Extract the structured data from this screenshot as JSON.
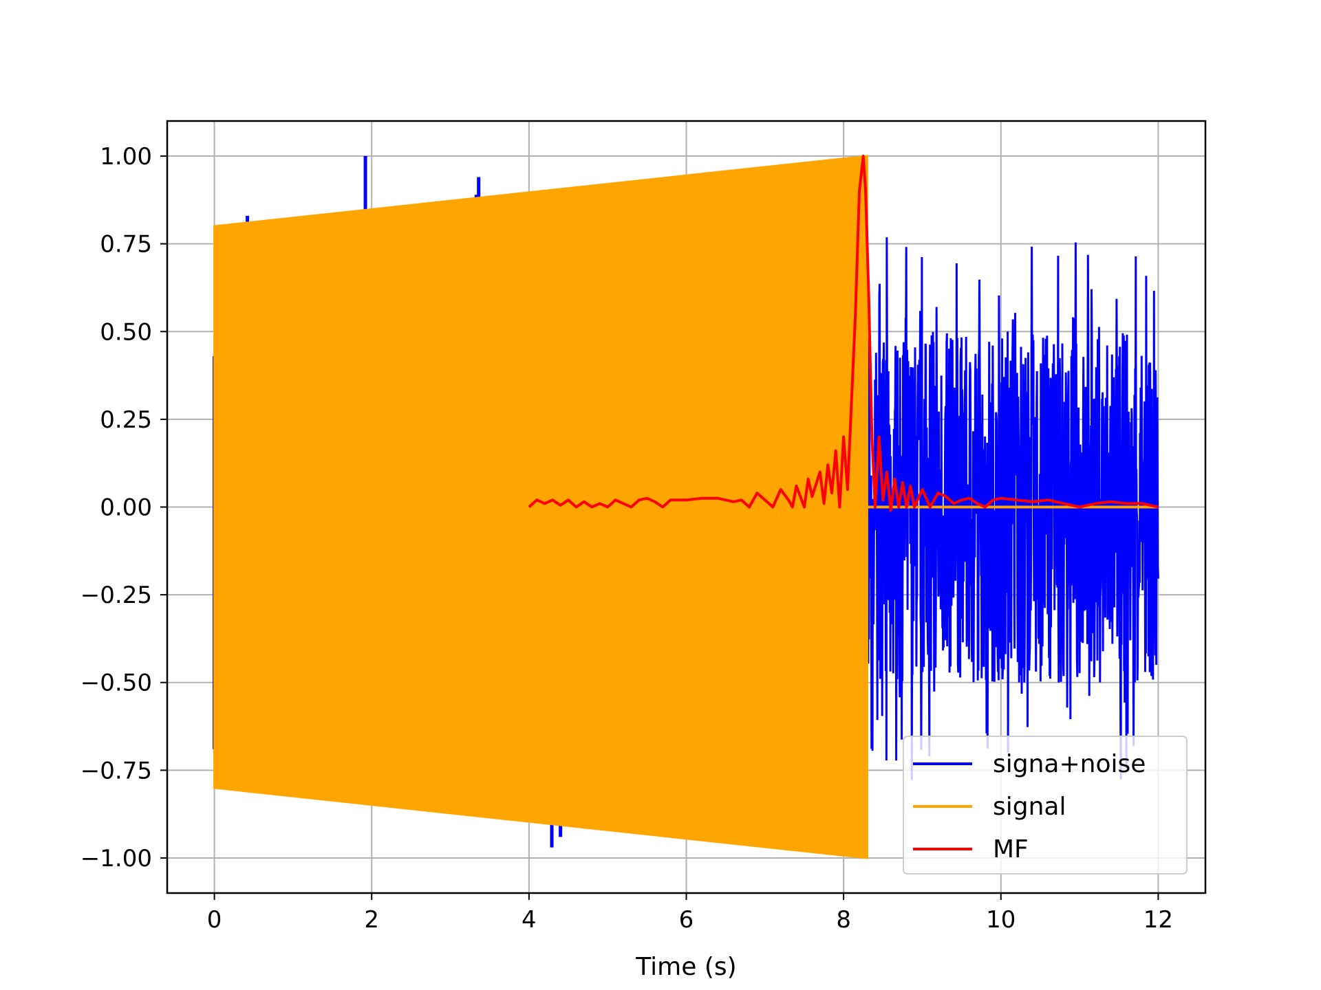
{
  "chart_data": {
    "type": "line",
    "title": "",
    "xlabel": "Time (s)",
    "ylabel": "",
    "xlim": [
      -0.6,
      12.6
    ],
    "ylim": [
      -1.1,
      1.1
    ],
    "grid": true,
    "x_ticks": [
      0,
      2,
      4,
      6,
      8,
      10,
      12
    ],
    "x_tick_labels": [
      "0",
      "2",
      "4",
      "6",
      "8",
      "10",
      "12"
    ],
    "y_ticks": [
      1.0,
      0.75,
      0.5,
      0.25,
      0.0,
      -0.25,
      -0.5,
      -0.75,
      -1.0
    ],
    "y_tick_labels": [
      "1.00",
      "0.75",
      "0.50",
      "0.25",
      "0.00",
      "−0.25",
      "−0.50",
      "−0.75",
      "−1.00"
    ],
    "legend_position": "lower-right",
    "series": [
      {
        "name": "signa+noise",
        "color": "#0000ff",
        "description_points": {
          "noise_interval": [
            8.28,
            12.0
          ],
          "spikes": [
            [
              0.0,
              0.43
            ],
            [
              0.0,
              -0.69
            ],
            [
              0.42,
              0.83
            ],
            [
              1.92,
              1.0
            ],
            [
              3.33,
              0.89
            ],
            [
              3.36,
              0.94
            ],
            [
              4.29,
              -0.97
            ],
            [
              4.4,
              -0.94
            ]
          ],
          "noise_range": [
            -0.82,
            0.78
          ]
        }
      },
      {
        "name": "signal",
        "color": "#ffa500",
        "envelope": {
          "x": [
            0.0,
            8.3
          ],
          "upper": [
            0.8,
            1.0
          ],
          "lower": [
            -0.8,
            -1.0
          ]
        },
        "zero_after": [
          8.3,
          12.0
        ]
      },
      {
        "name": "MF",
        "color": "#ff0000",
        "x": [
          4.0,
          4.1,
          4.2,
          4.3,
          4.4,
          4.5,
          4.6,
          4.7,
          4.8,
          4.9,
          5.0,
          5.1,
          5.2,
          5.3,
          5.4,
          5.5,
          5.6,
          5.7,
          5.8,
          5.9,
          6.0,
          6.2,
          6.4,
          6.6,
          6.7,
          6.8,
          6.9,
          7.0,
          7.1,
          7.2,
          7.3,
          7.35,
          7.4,
          7.5,
          7.55,
          7.6,
          7.7,
          7.75,
          7.8,
          7.85,
          7.9,
          7.95,
          8.0,
          8.05,
          8.1,
          8.15,
          8.2,
          8.25,
          8.28,
          8.32,
          8.36,
          8.4,
          8.45,
          8.5,
          8.55,
          8.6,
          8.65,
          8.7,
          8.75,
          8.8,
          8.85,
          8.9,
          9.0,
          9.1,
          9.2,
          9.3,
          9.4,
          9.5,
          9.6,
          9.7,
          9.8,
          9.9,
          10.0,
          10.2,
          10.4,
          10.6,
          10.8,
          11.0,
          11.2,
          11.4,
          11.6,
          11.8,
          12.0
        ],
        "y": [
          0.0,
          0.02,
          0.01,
          0.02,
          0.005,
          0.02,
          0.0,
          0.015,
          0.0,
          0.01,
          0.0,
          0.02,
          0.01,
          0.0,
          0.02,
          0.025,
          0.015,
          0.0,
          0.02,
          0.02,
          0.02,
          0.025,
          0.025,
          0.015,
          0.02,
          0.0,
          0.04,
          0.02,
          0.0,
          0.05,
          0.02,
          0.0,
          0.06,
          0.0,
          0.08,
          0.03,
          0.1,
          0.01,
          0.12,
          0.04,
          0.16,
          0.0,
          0.2,
          0.05,
          0.3,
          0.55,
          0.9,
          1.0,
          0.9,
          0.6,
          0.2,
          0.0,
          0.2,
          0.02,
          0.1,
          -0.01,
          0.08,
          0.0,
          0.07,
          0.0,
          0.06,
          0.0,
          0.05,
          0.0,
          0.04,
          0.03,
          0.01,
          0.02,
          0.025,
          0.01,
          0.0,
          0.02,
          0.025,
          0.02,
          0.015,
          0.02,
          0.01,
          0.0,
          0.01,
          0.015,
          0.01,
          0.01,
          0.0
        ]
      }
    ]
  },
  "legend": {
    "items": [
      {
        "label": "signa+noise",
        "color": "#0000ff"
      },
      {
        "label": "signal",
        "color": "#ffa500"
      },
      {
        "label": "MF",
        "color": "#ff0000"
      }
    ]
  }
}
